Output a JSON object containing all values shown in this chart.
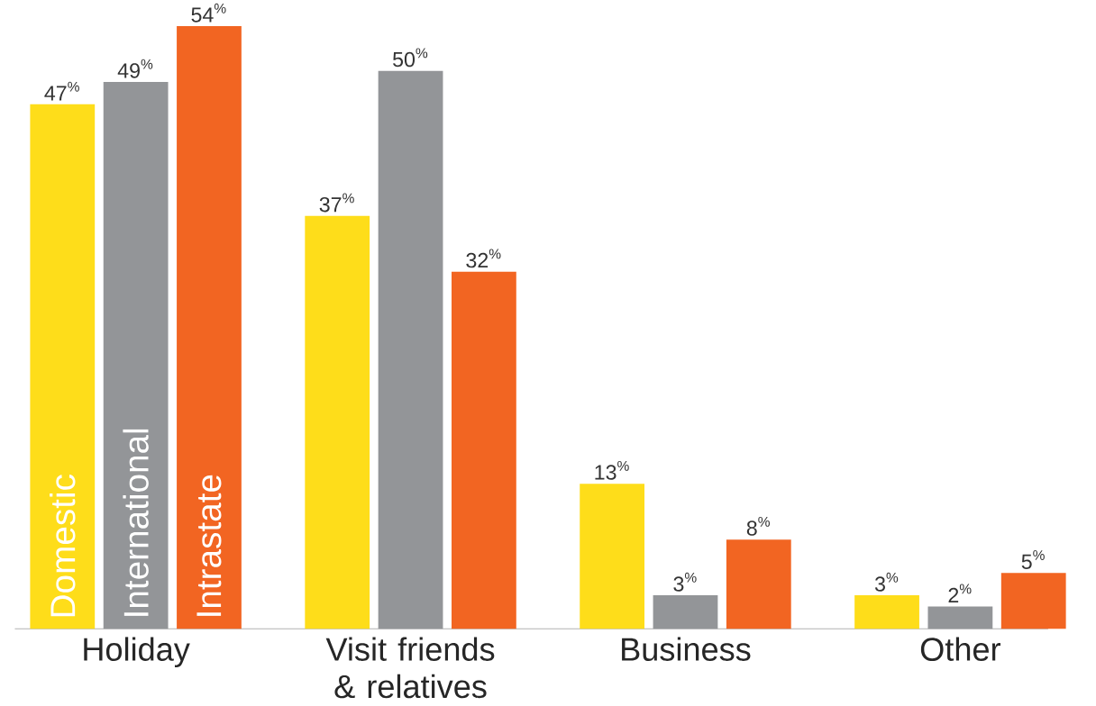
{
  "chart_data": {
    "type": "bar",
    "categories": [
      "Holiday",
      "Visit friends & relatives",
      "Business",
      "Other"
    ],
    "series": [
      {
        "name": "Domestic",
        "color": "#fedd1a",
        "values": [
          47,
          37,
          13,
          3
        ],
        "value_labels": [
          "47$^{%}$",
          "37$^{%}$",
          "13$^{%}$",
          "3$^{%}$"
        ]
      },
      {
        "name": "International",
        "color": "#939598",
        "values": [
          49,
          50,
          3,
          2
        ],
        "value_labels": [
          "49$^{%}$",
          "50$^{%}$",
          "3$^{%}$",
          "2$^{%}$"
        ]
      },
      {
        "name": "Intrastate",
        "color": "#f26522",
        "values": [
          54,
          32,
          8,
          5
        ],
        "value_labels": [
          "54$^{%}$",
          "32$^{%}$",
          "8$^{%}$",
          "5$^{%}$"
        ]
      }
    ],
    "legend": false
  }
}
